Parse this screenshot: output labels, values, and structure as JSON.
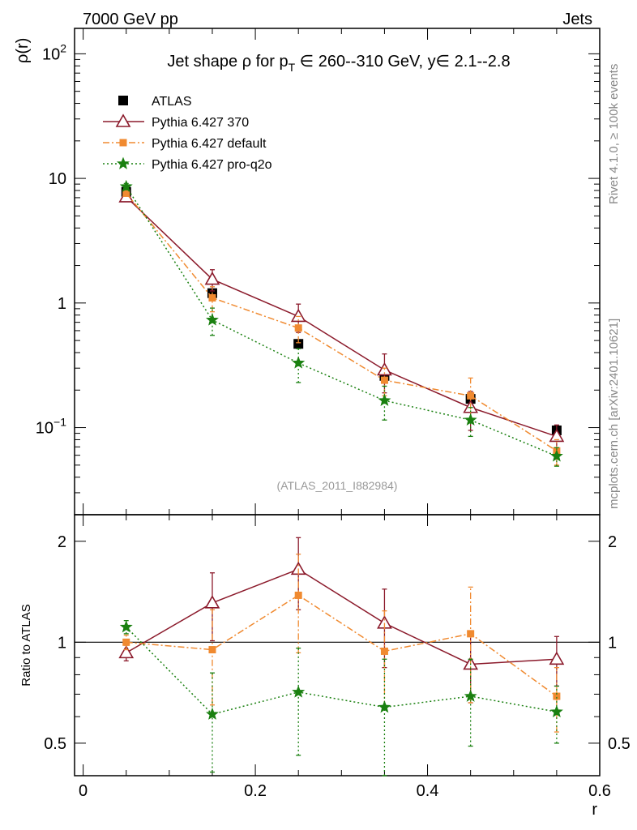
{
  "header": {
    "left": "7000 GeV pp",
    "right": "Jets",
    "side_top": "Rivet 4.1.0, ≥ 100k events",
    "side_bottom": "mcplots.cern.ch [arXiv:2401.10621]"
  },
  "colors": {
    "atlas": "#000000",
    "p370": "#8b1a2b",
    "pdefault": "#f08a30",
    "proq2o": "#1a8010",
    "watermark": "#999999",
    "side": "#888888"
  },
  "chart_data": [
    {
      "id": "main",
      "type": "line",
      "title_prefix": "Jet shape ρ for p",
      "title_sub": "T",
      "title_suffix": " ∈ 260--310 GeV, y∈ 2.1--2.8",
      "ylabel": "ρ(r)",
      "yscale": "log",
      "ylim": [
        0.02,
        160
      ],
      "xlim": [
        -0.01,
        0.6
      ],
      "yticks": [
        {
          "v": 100,
          "base": "10",
          "exp": "2"
        },
        {
          "v": 10,
          "base": "10",
          "exp": ""
        },
        {
          "v": 1,
          "base": "1",
          "exp": ""
        },
        {
          "v": 0.1,
          "base": "10",
          "exp": "−1"
        }
      ],
      "watermark": "(ATLAS_2011_I882984)",
      "legend": [
        {
          "key": "atlas",
          "label": "ATLAS"
        },
        {
          "key": "p370",
          "label": "Pythia 6.427 370"
        },
        {
          "key": "pdefault",
          "label": "Pythia 6.427 default"
        },
        {
          "key": "proq2o",
          "label": "Pythia 6.427 pro-q2o"
        }
      ],
      "x": [
        0.05,
        0.15,
        0.25,
        0.35,
        0.45,
        0.55
      ],
      "series": [
        {
          "key": "atlas",
          "name": "ATLAS",
          "values": [
            7.8,
            1.2,
            0.47,
            0.26,
            0.17,
            0.095
          ]
        },
        {
          "key": "p370",
          "name": "Pythia 6.427 370",
          "values": [
            7.1,
            1.55,
            0.78,
            0.29,
            0.145,
            0.085
          ],
          "errors": [
            0.4,
            0.3,
            0.2,
            0.1,
            0.05,
            0.02
          ]
        },
        {
          "key": "pdefault",
          "name": "Pythia 6.427 default",
          "values": [
            7.6,
            1.1,
            0.63,
            0.24,
            0.18,
            0.065
          ],
          "errors": [
            0.4,
            0.25,
            0.15,
            0.06,
            0.07,
            0.015
          ]
        },
        {
          "key": "proq2o",
          "name": "Pythia 6.427 pro-q2o",
          "values": [
            8.6,
            0.73,
            0.33,
            0.165,
            0.115,
            0.059
          ],
          "errors": [
            0.5,
            0.18,
            0.1,
            0.05,
            0.03,
            0.01
          ]
        }
      ]
    },
    {
      "id": "ratio",
      "type": "line",
      "ylabel": "Ratio to ATLAS",
      "xlabel": "r",
      "yscale": "log",
      "ylim": [
        0.4,
        2.4
      ],
      "xlim": [
        -0.01,
        0.6
      ],
      "yticks": [
        {
          "v": 2,
          "label": "2"
        },
        {
          "v": 1,
          "label": "1"
        },
        {
          "v": 0.5,
          "label": "0.5"
        }
      ],
      "xticks": [
        {
          "v": 0,
          "label": "0"
        },
        {
          "v": 0.2,
          "label": "0.2"
        },
        {
          "v": 0.4,
          "label": "0.4"
        },
        {
          "v": 0.6,
          "label": "0.6"
        }
      ],
      "reference": 1,
      "x": [
        0.05,
        0.15,
        0.25,
        0.35,
        0.45,
        0.55
      ],
      "series": [
        {
          "key": "p370",
          "name": "Pythia 6.427 370",
          "values": [
            0.93,
            1.31,
            1.65,
            1.14,
            0.86,
            0.89
          ],
          "err_low": [
            0.05,
            0.3,
            0.4,
            0.3,
            0.2,
            0.15
          ],
          "err_high": [
            0.05,
            0.3,
            0.4,
            0.3,
            0.2,
            0.15
          ]
        },
        {
          "key": "pdefault",
          "name": "Pythia 6.427 default",
          "values": [
            1.0,
            0.95,
            1.38,
            0.94,
            1.06,
            0.69
          ],
          "err_low": [
            0.05,
            0.3,
            0.45,
            0.3,
            0.4,
            0.15
          ],
          "err_high": [
            0.05,
            0.3,
            0.45,
            0.3,
            0.4,
            0.15
          ]
        },
        {
          "key": "proq2o",
          "name": "Pythia 6.427 pro-q2o",
          "values": [
            1.11,
            0.61,
            0.71,
            0.64,
            0.69,
            0.62
          ],
          "err_low": [
            0.05,
            0.2,
            0.25,
            0.25,
            0.2,
            0.12
          ],
          "err_high": [
            0.05,
            0.2,
            0.25,
            0.25,
            0.2,
            0.12
          ]
        }
      ]
    }
  ]
}
